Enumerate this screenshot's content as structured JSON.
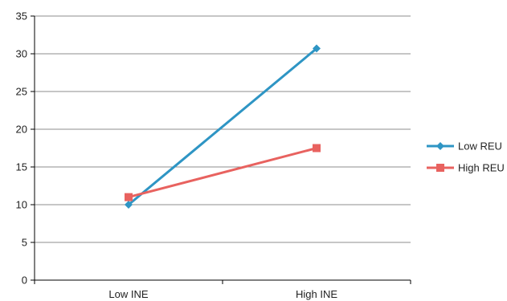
{
  "chart_data": {
    "type": "line",
    "categories": [
      "Low INE",
      "High INE"
    ],
    "series": [
      {
        "name": "Low REU",
        "values": [
          10,
          30.7
        ],
        "color": "#2E95C4",
        "marker": "diamond"
      },
      {
        "name": "High REU",
        "values": [
          11,
          17.5
        ],
        "color": "#E8625F",
        "marker": "square"
      }
    ],
    "title": "",
    "xlabel": "",
    "ylabel": "",
    "ylim": [
      0,
      35
    ],
    "yticks": [
      0,
      5,
      10,
      15,
      20,
      25,
      30,
      35
    ],
    "grid": true,
    "legend": "right"
  }
}
